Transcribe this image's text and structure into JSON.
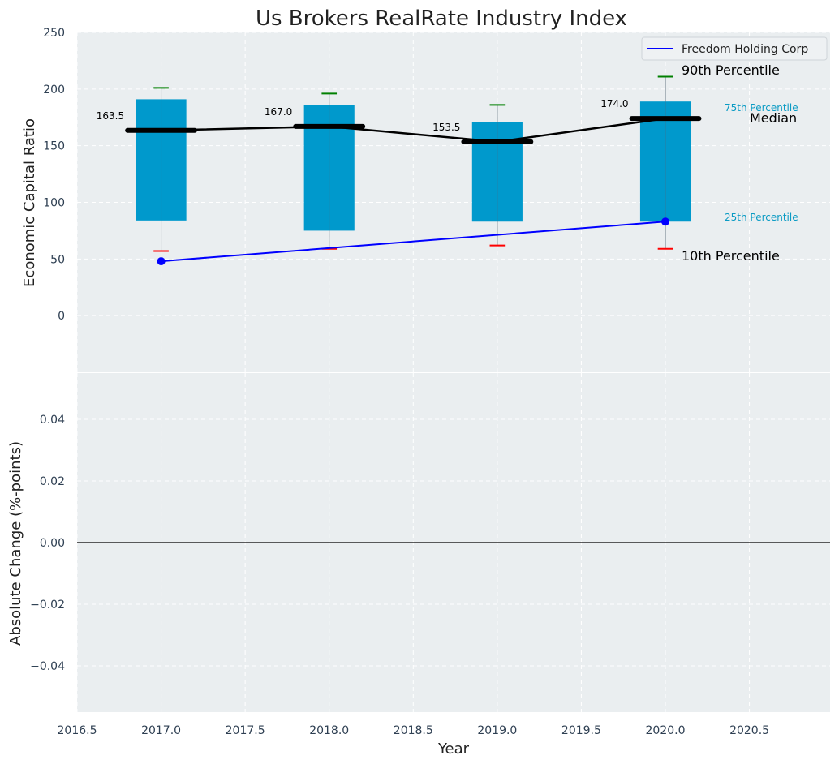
{
  "chart_data": {
    "type": "box",
    "title": "Us Brokers RealRate Industry Index",
    "xlabel": "Year",
    "top_panel": {
      "ylabel": "Economic Capital Ratio",
      "ylim": [
        -50,
        250
      ],
      "yticks": [
        0,
        50,
        100,
        150,
        200,
        250
      ],
      "years": [
        2017,
        2018,
        2019,
        2020
      ],
      "p10": [
        57,
        59,
        62,
        59
      ],
      "p25": [
        84,
        75,
        83,
        83
      ],
      "median": [
        163.5,
        167.0,
        153.5,
        174.0
      ],
      "median_labels": [
        "163.5",
        "167.0",
        "153.5",
        "174.0"
      ],
      "p75": [
        191,
        186,
        171,
        189
      ],
      "p90": [
        201,
        196,
        186,
        211
      ],
      "company": {
        "name": "Freedom Holding Corp",
        "x": [
          2017,
          2020
        ],
        "y": [
          48,
          83
        ]
      }
    },
    "bottom_panel": {
      "ylabel": "Absolute Change (%-points)",
      "ylim": [
        -0.055,
        0.055
      ],
      "yticks": [
        -0.04,
        -0.02,
        0.0,
        0.02,
        0.04
      ],
      "ytick_labels": [
        "−0.04",
        "−0.02",
        "0.00",
        "0.02",
        "0.04"
      ]
    },
    "xlim": [
      2016.5,
      2020.98
    ],
    "xticks": [
      2016.5,
      2017.0,
      2017.5,
      2018.0,
      2018.5,
      2019.0,
      2019.5,
      2020.0,
      2020.5
    ],
    "xtick_labels": [
      "2016.5",
      "2017.0",
      "2017.5",
      "2018.0",
      "2018.5",
      "2019.0",
      "2019.5",
      "2020.0",
      "2020.5"
    ],
    "legend": {
      "placement": "top-right",
      "entries": [
        "Freedom Holding Corp"
      ]
    },
    "annotations": {
      "p90": "90th Percentile",
      "p75": "75th Percentile",
      "median": "Median",
      "p25": "25th Percentile",
      "p10": "10th Percentile"
    },
    "grid": true,
    "colors": {
      "background": "#eaeef0",
      "box": "#0099cc",
      "median": "#000000",
      "company": "#0000ff",
      "p90_cap": "#008000",
      "p10_cap": "#ff0000",
      "annotation_small": "#0a9bc4"
    }
  }
}
